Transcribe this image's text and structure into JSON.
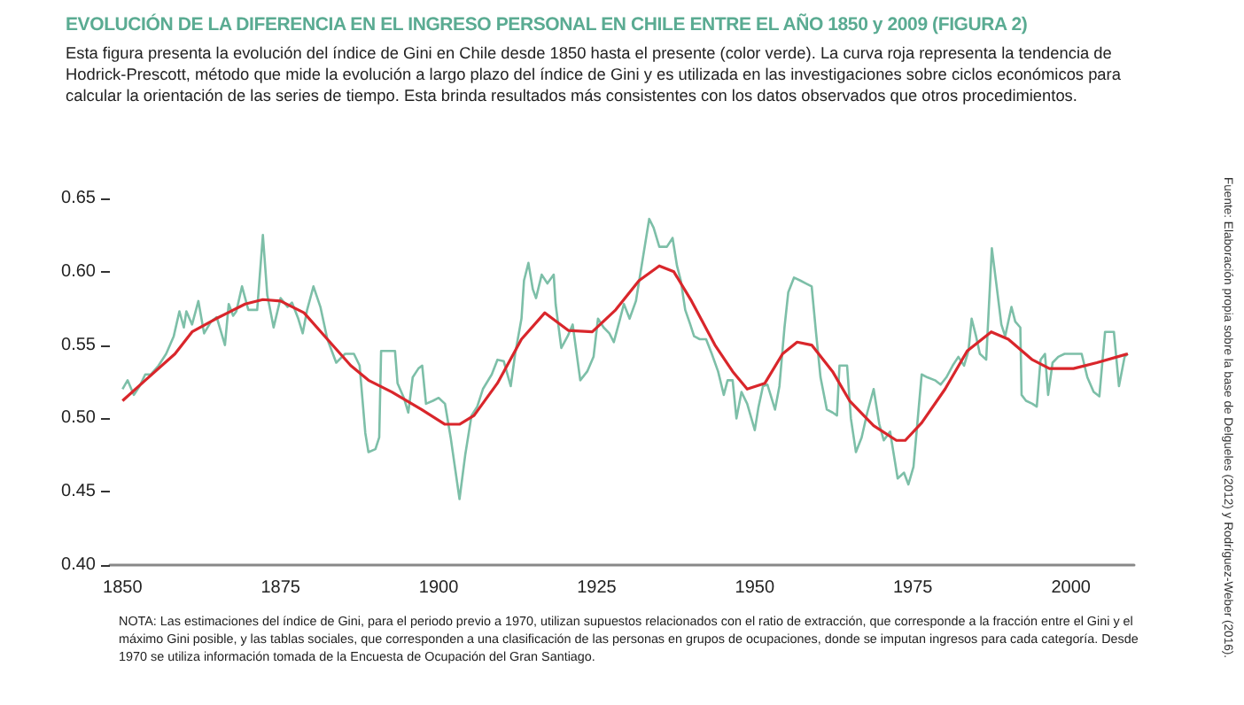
{
  "chart_data": {
    "type": "line",
    "title": "EVOLUCIÓN DE LA DIFERENCIA EN EL INGRESO PERSONAL EN CHILE ENTRE EL AÑO 1850 y 2009 (FIGURA 2)",
    "subtitle": "Esta figura presenta la evolución del índice de Gini en Chile desde 1850 hasta el presente (color verde). La curva roja representa la tendencia de Hodrick-Prescott, método que mide la evolución a largo plazo del índice de Gini y es utilizada en las investigaciones sobre ciclos económicos para calcular la orientación de las series de tiempo. Esta brinda resultados más consistentes con los datos observados que otros procedimientos.",
    "annotations": [
      "NOTA: Las estimaciones del índice de Gini, para el periodo previo a 1970, utilizan supuestos relacionados con el ratio de extracción, que corresponde a la fracción entre el Gini y el máximo Gini posible, y las tablas sociales, que corresponden a una clasificación de las personas en grupos de ocupaciones, donde se imputan ingresos para cada categoría. Desde 1970 se utiliza información tomada de la Encuesta de Ocupación del Gran Santiago.",
      "Fuente: Elaboración propia sobre la base de Delgueles (2012) y Rodríguez-Weber (2016)."
    ],
    "xlim": [
      1848,
      2010
    ],
    "xticks": [
      1850,
      1875,
      1900,
      1925,
      1950,
      1975,
      2000
    ],
    "ylim": [
      0.4,
      0.65
    ],
    "yticks": [
      {
        "value": 0.4,
        "label": "0.40"
      },
      {
        "value": 0.45,
        "label": "0.45"
      },
      {
        "value": 0.5,
        "label": "0.50"
      },
      {
        "value": 0.55,
        "label": "0.55"
      },
      {
        "value": 0.6,
        "label": "0.60"
      },
      {
        "value": 0.65,
        "label": "0.65"
      }
    ],
    "grid": false,
    "marker": "none",
    "line_style": "solid",
    "series": [
      {
        "color": "#7dbfa8",
        "x": [
          1850,
          1850.8,
          1851.8,
          1852.7,
          1853.6,
          1854.5,
          1855.7,
          1856.9,
          1858.1,
          1859.0,
          1859.7,
          1860.1,
          1861.0,
          1862.0,
          1862.9,
          1864.0,
          1864.9,
          1866.2,
          1866.8,
          1867.5,
          1868.0,
          1868.9,
          1869.9,
          1871.3,
          1872.2,
          1872.9,
          1873.9,
          1875.0,
          1876.1,
          1876.8,
          1877.8,
          1878.5,
          1879.2,
          1880.2,
          1881.3,
          1882.4,
          1883.8,
          1885.2,
          1886.6,
          1887.5,
          1888.4,
          1888.9,
          1890.0,
          1890.6,
          1890.9,
          1891.7,
          1893.1,
          1893.5,
          1894.5,
          1895.2,
          1895.9,
          1896.8,
          1897.4,
          1898.0,
          1899.1,
          1900.0,
          1901.0,
          1901.9,
          1903.3,
          1904.2,
          1905.2,
          1906.1,
          1907.0,
          1908.4,
          1909.3,
          1910.3,
          1911.4,
          1912.1,
          1913.1,
          1913.5,
          1914.2,
          1914.9,
          1915.4,
          1916.3,
          1917.2,
          1918.2,
          1918.5,
          1919.4,
          1920.4,
          1921.2,
          1922.4,
          1923.5,
          1924.5,
          1925.2,
          1926.1,
          1927.0,
          1927.7,
          1928.7,
          1929.3,
          1930.2,
          1931.2,
          1932.1,
          1933.3,
          1934.0,
          1934.9,
          1936.1,
          1937.0,
          1937.7,
          1938.3,
          1939.0,
          1939.8,
          1940.4,
          1941.3,
          1942.3,
          1943.2,
          1944.2,
          1945.1,
          1945.7,
          1946.5,
          1947.1,
          1947.9,
          1948.8,
          1950.0,
          1950.6,
          1951.3,
          1952.0,
          1952.5,
          1953.2,
          1953.9,
          1954.7,
          1955.3,
          1956.2,
          1957.2,
          1958.1,
          1959.0,
          1959.7,
          1960.4,
          1961.4,
          1962.3,
          1963.0,
          1963.4,
          1964.1,
          1964.6,
          1965.2,
          1966.0,
          1966.9,
          1967.8,
          1968.8,
          1969.7,
          1970.4,
          1971.4,
          1972.0,
          1972.6,
          1973.6,
          1974.3,
          1975.1,
          1975.7,
          1976.4,
          1977.3,
          1978.5,
          1979.4,
          1980.3,
          1981.3,
          1982.2,
          1983.1,
          1983.8,
          1984.3,
          1985.0,
          1985.6,
          1986.6,
          1987.5,
          1988.2,
          1989.0,
          1989.6,
          1990.6,
          1991.2,
          1992.0,
          1992.2,
          1992.9,
          1993.9,
          1994.6,
          1995.2,
          1995.9,
          1996.4,
          1997.1,
          1998.0,
          1999.0,
          1999.9,
          2001.7,
          2002.6,
          2003.6,
          2004.5,
          2005.4,
          2006.8,
          2007.6,
          2008.5,
          2009.0
        ],
        "values": [
          0.52,
          0.526,
          0.516,
          0.522,
          0.53,
          0.53,
          0.536,
          0.544,
          0.556,
          0.573,
          0.562,
          0.573,
          0.564,
          0.58,
          0.558,
          0.566,
          0.569,
          0.55,
          0.578,
          0.57,
          0.573,
          0.59,
          0.574,
          0.574,
          0.625,
          0.584,
          0.562,
          0.582,
          0.576,
          0.579,
          0.568,
          0.558,
          0.574,
          0.59,
          0.576,
          0.554,
          0.538,
          0.544,
          0.544,
          0.536,
          0.49,
          0.477,
          0.479,
          0.487,
          0.546,
          0.546,
          0.546,
          0.524,
          0.514,
          0.504,
          0.528,
          0.534,
          0.536,
          0.51,
          0.512,
          0.514,
          0.51,
          0.487,
          0.445,
          0.475,
          0.502,
          0.508,
          0.52,
          0.53,
          0.54,
          0.539,
          0.522,
          0.544,
          0.568,
          0.594,
          0.606,
          0.588,
          0.582,
          0.598,
          0.592,
          0.598,
          0.578,
          0.548,
          0.556,
          0.564,
          0.526,
          0.532,
          0.542,
          0.568,
          0.562,
          0.558,
          0.552,
          0.568,
          0.578,
          0.568,
          0.58,
          0.604,
          0.636,
          0.63,
          0.617,
          0.617,
          0.623,
          0.604,
          0.594,
          0.574,
          0.564,
          0.556,
          0.554,
          0.554,
          0.544,
          0.532,
          0.516,
          0.526,
          0.526,
          0.5,
          0.518,
          0.51,
          0.492,
          0.508,
          0.522,
          0.523,
          0.516,
          0.506,
          0.522,
          0.562,
          0.586,
          0.596,
          0.594,
          0.592,
          0.59,
          0.558,
          0.528,
          0.506,
          0.504,
          0.502,
          0.536,
          0.536,
          0.536,
          0.5,
          0.477,
          0.487,
          0.504,
          0.52,
          0.496,
          0.485,
          0.491,
          0.475,
          0.459,
          0.463,
          0.455,
          0.467,
          0.496,
          0.53,
          0.528,
          0.526,
          0.523,
          0.528,
          0.536,
          0.542,
          0.536,
          0.546,
          0.568,
          0.556,
          0.544,
          0.54,
          0.616,
          0.592,
          0.564,
          0.556,
          0.576,
          0.566,
          0.562,
          0.516,
          0.512,
          0.51,
          0.508,
          0.54,
          0.544,
          0.516,
          0.538,
          0.542,
          0.544,
          0.544,
          0.544,
          0.528,
          0.518,
          0.515,
          0.559,
          0.559,
          0.522,
          0.542,
          0.544
        ]
      },
      {
        "color": "#d9262b",
        "x": [
          1850,
          1853.6,
          1858.3,
          1861.0,
          1864.8,
          1869.4,
          1872.2,
          1875.0,
          1878.7,
          1882.4,
          1886.1,
          1888.9,
          1892.6,
          1897.3,
          1901.0,
          1903.3,
          1905.6,
          1909.3,
          1913.1,
          1916.8,
          1920.5,
          1924.3,
          1928.0,
          1931.7,
          1934.9,
          1937.2,
          1940.0,
          1943.7,
          1946.5,
          1948.8,
          1951.6,
          1954.4,
          1956.7,
          1959.0,
          1962.3,
          1965.0,
          1968.8,
          1972.4,
          1973.8,
          1976.4,
          1980.1,
          1983.6,
          1987.4,
          1990.1,
          1993.9,
          1996.6,
          2000.4,
          2004.1,
          2009.0
        ],
        "values": [
          0.512,
          0.526,
          0.544,
          0.559,
          0.568,
          0.578,
          0.581,
          0.58,
          0.572,
          0.554,
          0.536,
          0.526,
          0.518,
          0.506,
          0.496,
          0.496,
          0.502,
          0.524,
          0.554,
          0.572,
          0.56,
          0.559,
          0.574,
          0.594,
          0.604,
          0.6,
          0.58,
          0.55,
          0.532,
          0.52,
          0.524,
          0.544,
          0.552,
          0.55,
          0.532,
          0.512,
          0.495,
          0.485,
          0.485,
          0.497,
          0.52,
          0.546,
          0.559,
          0.554,
          0.54,
          0.534,
          0.534,
          0.538,
          0.544
        ]
      }
    ]
  }
}
